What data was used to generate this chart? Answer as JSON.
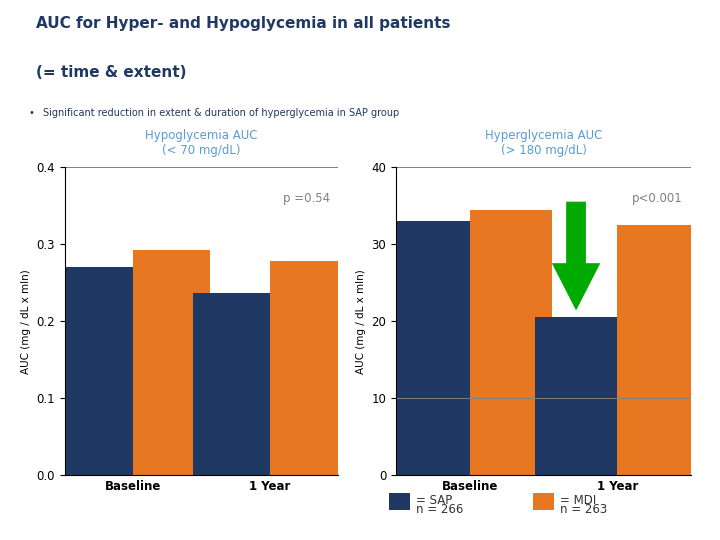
{
  "title_line1": "AUC for Hyper- and Hypoglycemia in all patients",
  "title_line2": "(= time & extent)",
  "title_color": "#1F3864",
  "subtitle": "Significant reduction in extent & duration of hyperglycemia in SAP group",
  "subtitle_bullet": "•",
  "bg_color": "#ffffff",
  "hypo_title": "Hypoglycemia AUC\n(< 70 mg/dL)",
  "hyper_title": "Hyperglycemia AUC\n(> 180 mg/dL)",
  "hypo_sap_baseline": 0.27,
  "hypo_mdi_baseline": 0.293,
  "hypo_sap_1year": 0.237,
  "hypo_mdi_1year": 0.278,
  "hyper_sap_baseline": 33.0,
  "hyper_mdi_baseline": 34.5,
  "hyper_sap_1year": 20.5,
  "hyper_mdi_1year": 32.5,
  "hypo_ylim": [
    0,
    0.4
  ],
  "hyper_ylim": [
    0,
    40
  ],
  "hypo_yticks": [
    0,
    0.1,
    0.2,
    0.3,
    0.4
  ],
  "hyper_yticks": [
    0,
    10,
    20,
    30,
    40
  ],
  "hypo_p_text": "p =0.54",
  "hyper_p_text": "p<0.001",
  "sap_color": "#1F3864",
  "mdi_color": "#E87722",
  "ylabel": "AUC (mg / dL x mIn)",
  "categories": [
    "Baseline",
    "1 Year"
  ],
  "arrow_color": "#00AA00",
  "title_color_chart": "#5B9BD5",
  "p_text_color": "#808080",
  "subtitle_color": "#1F3864"
}
